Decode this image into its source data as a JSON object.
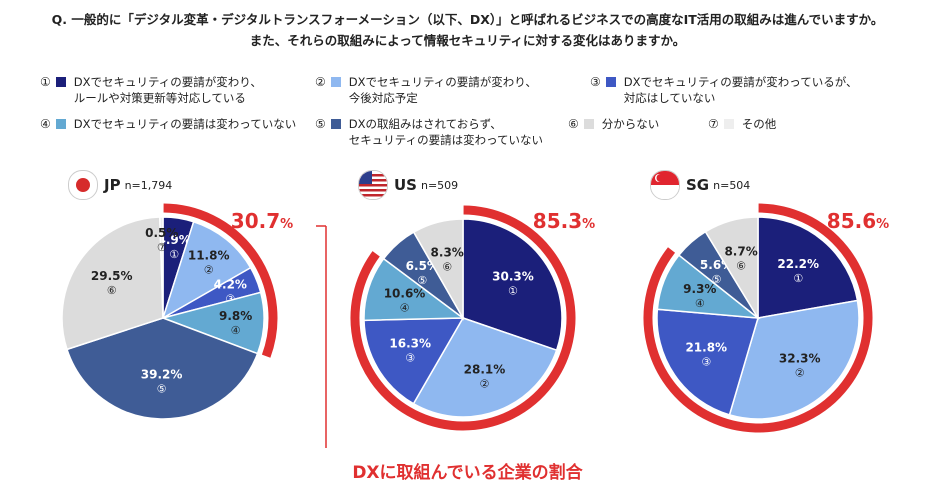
{
  "question": {
    "line1": "Q. 一般的に「デジタル変革・デジタルトランスフォーメーション（以下、DX）」と呼ばれるビジネスでの高度なIT活用の取組みは進んでいますか。",
    "line2": "また、それらの取組みによって情報セキュリティに対する変化はありますか。"
  },
  "legend": [
    {
      "num": "①",
      "line1": "DXでセキュリティの要請が変わり、",
      "line2": "ルールや対策更新等対応している",
      "color": "#1b1f7a"
    },
    {
      "num": "②",
      "line1": "DXでセキュリティの要請が変わり、",
      "line2": "今後対応予定",
      "color": "#8fb8f0"
    },
    {
      "num": "③",
      "line1": "DXでセキュリティの要請が変わっているが、",
      "line2": "対応はしていない",
      "color": "#3e58c4"
    },
    {
      "num": "④",
      "line1": "DXでセキュリティの要請は変わっていない",
      "line2": "",
      "color": "#63a9d2"
    },
    {
      "num": "⑤",
      "line1": "DXの取組みはされておらず、",
      "line2": "セキュリティの要請は変わっていない",
      "color": "#3f5c96"
    },
    {
      "num": "⑥",
      "line1": "分からない",
      "line2": "",
      "color": "#dcdcdc"
    },
    {
      "num": "⑦",
      "line1": "その他",
      "line2": "",
      "color": "#eeeeee"
    }
  ],
  "accent_color": "#e03030",
  "note": "DXに取組んでいる企業の割合",
  "chart_data": [
    {
      "type": "pie",
      "country": "JP",
      "n": "n=1,794",
      "flag": "japan-flag",
      "highlight": "30.7",
      "highlight_unit": "%",
      "slices": [
        {
          "num": "①",
          "value": 4.9,
          "label": "4.9%",
          "color": "#1b1f7a"
        },
        {
          "num": "②",
          "value": 11.8,
          "label": "11.8%",
          "color": "#8fb8f0"
        },
        {
          "num": "③",
          "value": 4.2,
          "label": "4.2%",
          "color": "#3e58c4"
        },
        {
          "num": "④",
          "value": 9.8,
          "label": "9.8%",
          "color": "#63a9d2"
        },
        {
          "num": "⑤",
          "value": 39.2,
          "label": "39.2%",
          "color": "#3f5c96"
        },
        {
          "num": "⑥",
          "value": 29.5,
          "label": "29.5%",
          "color": "#dcdcdc"
        },
        {
          "num": "⑦",
          "value": 0.5,
          "label": "0.5%",
          "color": "#eeeeee"
        }
      ]
    },
    {
      "type": "pie",
      "country": "US",
      "n": "n=509",
      "flag": "us-flag",
      "highlight": "85.3",
      "highlight_unit": "%",
      "slices": [
        {
          "num": "①",
          "value": 30.3,
          "label": "30.3%",
          "color": "#1b1f7a"
        },
        {
          "num": "②",
          "value": 28.1,
          "label": "28.1%",
          "color": "#8fb8f0"
        },
        {
          "num": "③",
          "value": 16.3,
          "label": "16.3%",
          "color": "#3e58c4"
        },
        {
          "num": "④",
          "value": 10.6,
          "label": "10.6%",
          "color": "#63a9d2"
        },
        {
          "num": "⑤",
          "value": 6.5,
          "label": "6.5%",
          "color": "#3f5c96"
        },
        {
          "num": "⑥",
          "value": 8.3,
          "label": "8.3%",
          "color": "#dcdcdc"
        }
      ]
    },
    {
      "type": "pie",
      "country": "SG",
      "n": "n=504",
      "flag": "singapore-flag",
      "highlight": "85.6",
      "highlight_unit": "%",
      "slices": [
        {
          "num": "①",
          "value": 22.2,
          "label": "22.2%",
          "color": "#1b1f7a"
        },
        {
          "num": "②",
          "value": 32.3,
          "label": "32.3%",
          "color": "#8fb8f0"
        },
        {
          "num": "③",
          "value": 21.8,
          "label": "21.8%",
          "color": "#3e58c4"
        },
        {
          "num": "④",
          "value": 9.3,
          "label": "9.3%",
          "color": "#63a9d2"
        },
        {
          "num": "⑤",
          "value": 5.6,
          "label": "5.6%",
          "color": "#3f5c96"
        },
        {
          "num": "⑥",
          "value": 8.7,
          "label": "8.7%",
          "color": "#dcdcdc"
        }
      ]
    }
  ]
}
